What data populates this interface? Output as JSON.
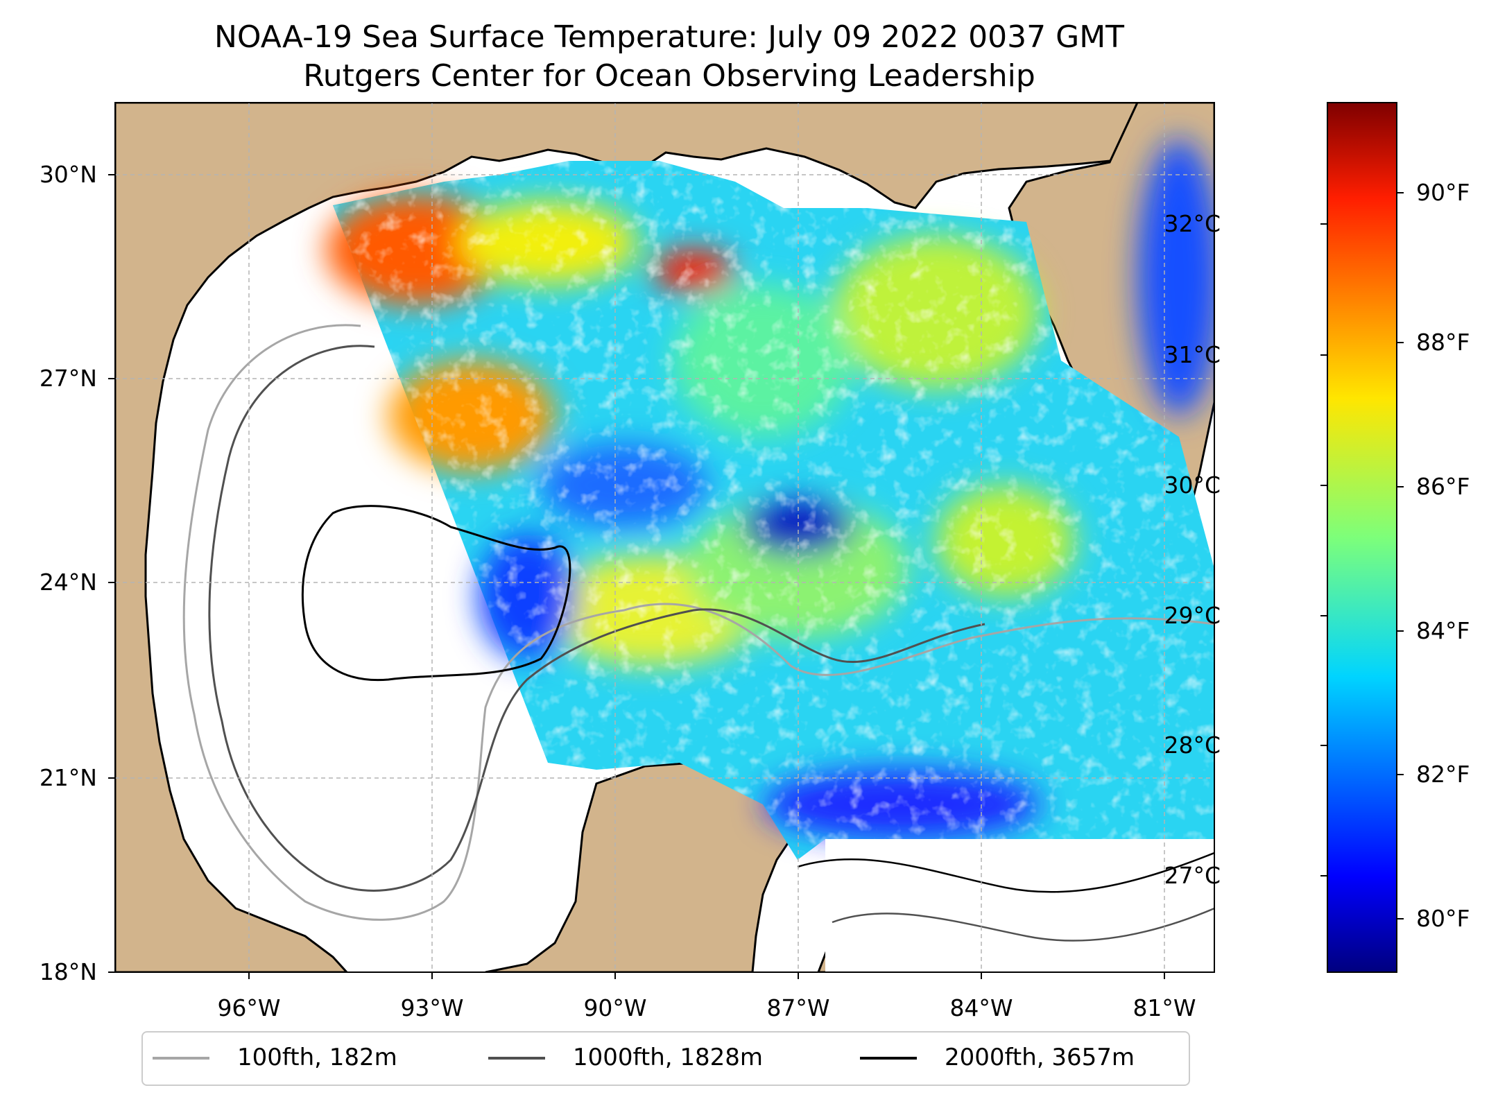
{
  "chart_data": {
    "type": "map",
    "title": "NOAA-19 Sea Surface Temperature: July 09 2022 0037 GMT",
    "subtitle": "Rutgers Center for Ocean Observing Leadership",
    "lat_ticks": [
      "30°N",
      "27°N",
      "24°N",
      "21°N",
      "18°N"
    ],
    "lon_ticks": [
      "96°W",
      "93°W",
      "90°W",
      "87°W",
      "84°W",
      "81°W"
    ],
    "lat_range": [
      18,
      31.1
    ],
    "lon_range": [
      -98.3,
      -80.3
    ],
    "grid": true,
    "colorbar": {
      "colormap": "jet",
      "celsius_ticks": [
        "27°C",
        "28°C",
        "29°C",
        "30°C",
        "31°C",
        "32°C"
      ],
      "celsius_values": [
        27,
        28,
        29,
        30,
        31,
        32
      ],
      "fahrenheit_ticks": [
        "80°F",
        "82°F",
        "84°F",
        "86°F",
        "88°F",
        "90°F"
      ],
      "fahrenheit_values": [
        80,
        82,
        84,
        86,
        88,
        90
      ],
      "range_c": [
        26.3,
        32.9
      ]
    },
    "legend": {
      "placement": "bottom-center",
      "entries": [
        {
          "label": "100fth, 182m",
          "color": "#a6a6a6"
        },
        {
          "label": "1000fth, 1828m",
          "color": "#505050"
        },
        {
          "label": "2000fth, 3657m",
          "color": "#000000"
        }
      ]
    },
    "colors": {
      "land": "#d2b48c",
      "ocean_no_data": "#ffffff",
      "lakes": "#97b6e1"
    }
  }
}
